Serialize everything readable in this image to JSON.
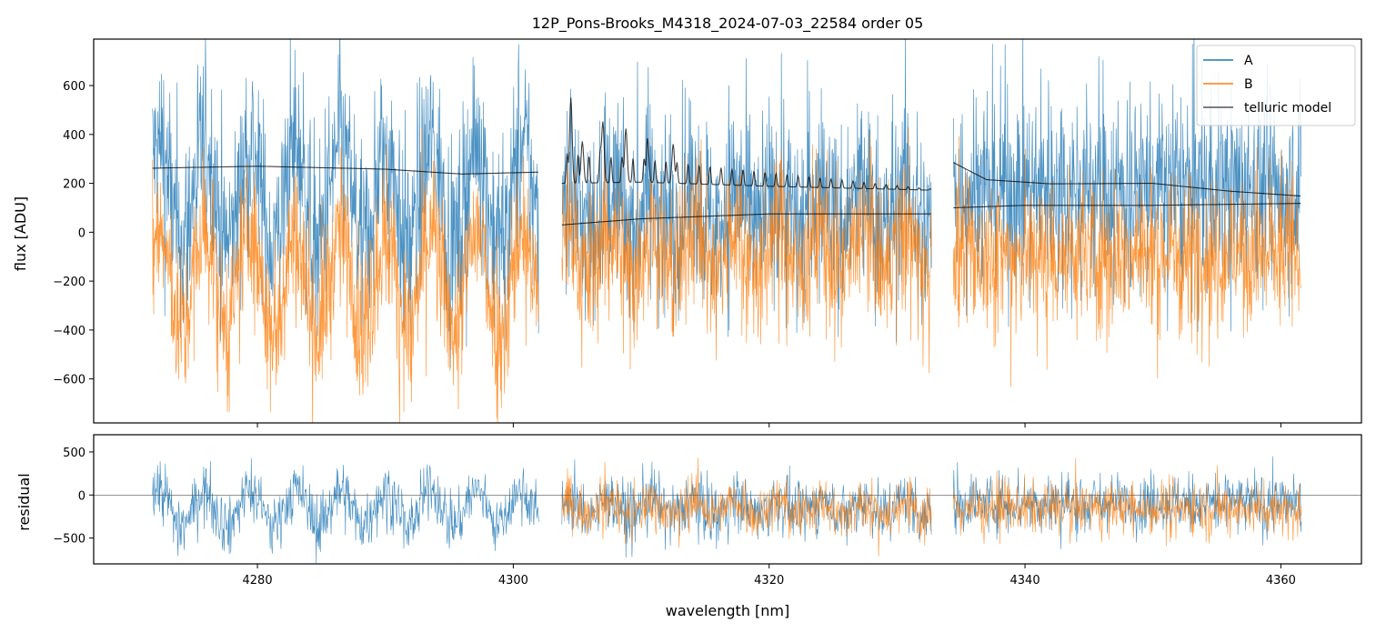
{
  "chart_data": [
    {
      "type": "line",
      "title": "12P_Pons-Brooks_M4318_2024-07-03_22584  order 05",
      "xlabel": "",
      "ylabel": "flux [ADU]",
      "xlim": [
        4267.2,
        4366.3
      ],
      "ylim": [
        -780,
        790
      ],
      "xticks": [
        4280,
        4300,
        4320,
        4340,
        4360
      ],
      "yticks": [
        -600,
        -400,
        -200,
        0,
        200,
        400,
        600
      ],
      "ytick_labels": [
        "−600",
        "−400",
        "−200",
        "0",
        "200",
        "400",
        "600"
      ],
      "segments": [
        [
          4271.8,
          4302.0
        ],
        [
          4303.8,
          4332.7
        ],
        [
          4334.4,
          4361.6
        ]
      ],
      "series": [
        {
          "name": "A",
          "color": "#1f77b4",
          "alpha": 0.8,
          "base_A_levels": [
            150,
            100,
            180
          ],
          "noise": 200
        },
        {
          "name": "B",
          "color": "#ff7f0e",
          "alpha": 0.8,
          "base_levels": [
            -200,
            -80,
            -90
          ],
          "noise": 160
        },
        {
          "name": "telluric model",
          "color": "#000000",
          "alpha": 0.75,
          "model_A": {
            "seg1": {
              "x": [
                4271.8,
                4280,
                4290,
                4296,
                4302.0
              ],
              "y": [
                262,
                270,
                258,
                238,
                246
              ]
            },
            "seg2": {
              "x": [
                4303.8,
                4310,
                4320,
                4332.7
              ],
              "y": [
                200,
                205,
                188,
                172
              ],
              "peaks": [
                [
                  4304.5,
                  350
                ],
                [
                  4305.4,
                  170
                ],
                [
                  4307.0,
                  250
                ],
                [
                  4308.8,
                  220
                ],
                [
                  4310.5,
                  180
                ],
                [
                  4312.5,
                  160
                ]
              ]
            },
            "seg3": {
              "x": [
                4334.4,
                4337,
                4342,
                4350,
                4356,
                4361.6
              ],
              "y": [
                285,
                215,
                198,
                200,
                168,
                148
              ]
            }
          },
          "model_B": {
            "seg1": {
              "x": [],
              "y": []
            },
            "seg2": {
              "x": [
                4303.8,
                4310,
                4320,
                4332.7
              ],
              "y": [
                30,
                55,
                75,
                75
              ]
            },
            "seg3": {
              "x": [
                4334.4,
                4340,
                4350,
                4361.6
              ],
              "y": [
                100,
                110,
                110,
                118
              ]
            }
          }
        }
      ],
      "legend": {
        "entries": [
          "A",
          "B",
          "telluric model"
        ],
        "placement": "upper right"
      }
    },
    {
      "type": "line",
      "xlabel": "wavelength [nm]",
      "ylabel": "residual",
      "xlim": [
        4267.2,
        4366.3
      ],
      "ylim": [
        -800,
        700
      ],
      "xticks": [
        4280,
        4300,
        4320,
        4340,
        4360
      ],
      "xtick_labels": [
        "4280",
        "4300",
        "4320",
        "4340",
        "4360"
      ],
      "yticks": [
        -500,
        0,
        500
      ],
      "ytick_labels": [
        "−500",
        "0",
        "500"
      ],
      "zero_line": true,
      "series": [
        {
          "name": "A",
          "color": "#1f77b4",
          "base_levels": [
            -140,
            -140,
            -90
          ],
          "noise": 170
        },
        {
          "name": "B",
          "color": "#ff7f0e",
          "base_levels": [
            null,
            -160,
            -150
          ],
          "noise": 150
        }
      ]
    }
  ]
}
